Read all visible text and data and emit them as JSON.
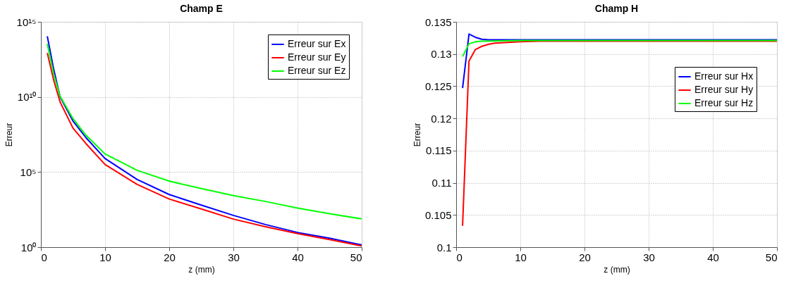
{
  "chart_data": [
    {
      "type": "line",
      "title": "Champ E",
      "xlabel": "z (mm)",
      "ylabel": "Erreur",
      "log": "y",
      "grid": true,
      "legend": "top right",
      "line_style": "solid",
      "marker": "none",
      "x": [
        1,
        2,
        3,
        5,
        7,
        10,
        15,
        20,
        25,
        30,
        35,
        40,
        45,
        50
      ],
      "xlim": [
        0,
        50
      ],
      "xticks": [
        0,
        10,
        20,
        30,
        40,
        50
      ],
      "ylim": [
        1,
        1000000000000000.0
      ],
      "yticks": [
        {
          "value": 1,
          "label": "10⁰"
        },
        {
          "value": 100000.0,
          "label": "10⁵"
        },
        {
          "value": 10000000000.0,
          "label": "10¹⁰"
        },
        {
          "value": 1000000000000000.0,
          "label": "10¹⁵"
        }
      ],
      "series": [
        {
          "name": "Erreur sur Ex",
          "color": "#0000ff",
          "values": [
            110000000000000.0,
            680000000000.0,
            10000000000.0,
            250000000.0,
            20000000.0,
            800000.0,
            32000.0,
            3200.0,
            630,
            130,
            32,
            9.5,
            4,
            1.4
          ]
        },
        {
          "name": "Erreur sur Ey",
          "color": "#ff0000",
          "values": [
            8500000000000.0,
            130000000000.0,
            4500000000.0,
            85000000.0,
            8000000.0,
            320000.0,
            15000.0,
            1600.0,
            350,
            74,
            23,
            8,
            3.2,
            1.2
          ]
        },
        {
          "name": "Erreur sur Ez",
          "color": "#00ff00",
          "values": [
            35000000000000.0,
            320000000000.0,
            11000000000.0,
            360000000.0,
            29000000.0,
            1600000.0,
            130000.0,
            25000.0,
            8000.0,
            2700.0,
            1100.0,
            400,
            170,
            76
          ]
        }
      ]
    },
    {
      "type": "line",
      "title": "Champ H",
      "xlabel": "z (mm)",
      "ylabel": "Erreur",
      "grid": true,
      "legend": "right",
      "line_style": "solid",
      "marker": "none",
      "xlim": [
        0,
        50
      ],
      "xticks": [
        0,
        10,
        20,
        30,
        40,
        50
      ],
      "ylim": [
        0.1,
        0.135
      ],
      "yticks": [
        0.1,
        0.105,
        0.11,
        0.115,
        0.12,
        0.125,
        0.13,
        0.135
      ],
      "series": [
        {
          "name": "Erreur sur Hx",
          "color": "#0000ff",
          "x": [
            1,
            2,
            3,
            4,
            5,
            6,
            10,
            20,
            30,
            40,
            50
          ],
          "values": [
            0.1247,
            0.1331,
            0.1326,
            0.1323,
            0.1322,
            0.1322,
            0.1322,
            0.1322,
            0.1322,
            0.1322,
            0.1322
          ]
        },
        {
          "name": "Erreur sur Hy",
          "color": "#ff0000",
          "x": [
            1,
            2,
            3,
            4,
            5,
            6,
            8,
            10,
            13,
            20,
            30,
            40,
            50
          ],
          "values": [
            0.1033,
            0.1289,
            0.1307,
            0.1312,
            0.1315,
            0.1317,
            0.1318,
            0.1319,
            0.132,
            0.132,
            0.132,
            0.132,
            0.132
          ]
        },
        {
          "name": "Erreur sur Hz",
          "color": "#00ff00",
          "x": [
            1,
            2,
            3,
            4,
            10,
            20,
            30,
            40,
            50
          ],
          "values": [
            0.1296,
            0.1316,
            0.1319,
            0.132,
            0.1321,
            0.1321,
            0.1321,
            0.1321,
            0.1321
          ]
        }
      ]
    }
  ]
}
